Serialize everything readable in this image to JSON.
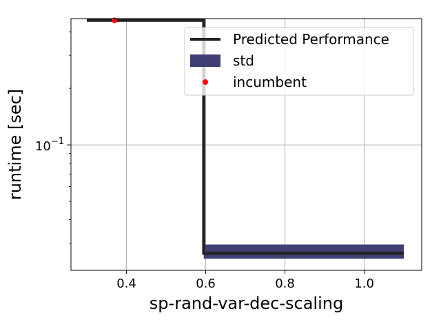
{
  "chart_data": {
    "type": "line",
    "title": "",
    "xlabel": "sp-rand-var-dec-scaling",
    "ylabel": "runtime [sec]",
    "xlim": [
      0.26,
      1.145
    ],
    "ylim": [
      0.0215,
      0.47
    ],
    "yscale": "log",
    "grid": true,
    "legend_position": "top-right",
    "x_ticks": [
      {
        "value": 0.4,
        "label": "0.4"
      },
      {
        "value": 0.6,
        "label": "0.6"
      },
      {
        "value": 0.8,
        "label": "0.8"
      },
      {
        "value": 1.0,
        "label": "1.0"
      }
    ],
    "y_ticks": [
      {
        "value": 0.1,
        "label": "10",
        "exponent": "−1"
      }
    ],
    "series": [
      {
        "name": "Predicted Performance",
        "color": "#222222",
        "x": [
          0.3,
          0.595,
          0.595,
          1.1
        ],
        "y": [
          0.46,
          0.46,
          0.0265,
          0.0265
        ]
      }
    ],
    "std_band": {
      "name": "std",
      "color": "#3f3f74",
      "segments": [
        {
          "x0": 0.595,
          "x1": 1.1,
          "low": 0.0248,
          "high": 0.0295
        }
      ]
    },
    "incumbent": {
      "name": "incumbent",
      "color": "#ff0000",
      "points": [
        {
          "x": 0.37,
          "y": 0.46
        }
      ]
    }
  }
}
